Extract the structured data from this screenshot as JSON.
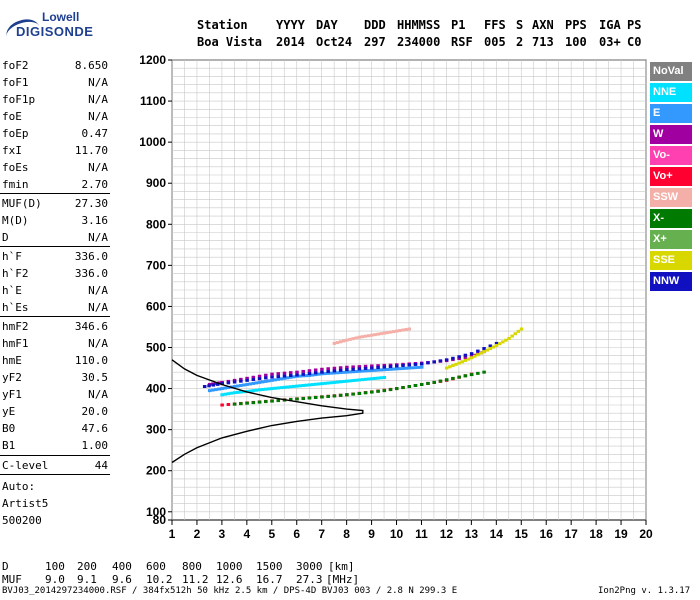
{
  "logo": {
    "line1": "Lowell",
    "line2": "DIGISONDE"
  },
  "header": {
    "labels": [
      "Station",
      "YYYY",
      "DAY",
      "DDD",
      "HHMMSS",
      "P1",
      "FFS",
      "S",
      "AXN",
      "PPS",
      "IGA",
      "PS"
    ],
    "values": [
      "Boa Vista",
      "2014",
      "Oct24",
      "297",
      "234000",
      "RSF",
      "005",
      "2",
      "713",
      "100",
      "03+",
      "C0"
    ]
  },
  "params": [
    {
      "name": "foF2",
      "value": "8.650"
    },
    {
      "name": "foF1",
      "value": "N/A"
    },
    {
      "name": "foF1p",
      "value": "N/A"
    },
    {
      "name": "foE",
      "value": "N/A"
    },
    {
      "name": "foEp",
      "value": "0.47"
    },
    {
      "name": "fxI",
      "value": "11.70"
    },
    {
      "name": "foEs",
      "value": "N/A"
    },
    {
      "name": "fmin",
      "value": "2.70"
    },
    {
      "name": "MUF(D)",
      "value": "27.30"
    },
    {
      "name": "M(D)",
      "value": "3.16"
    },
    {
      "name": "D",
      "value": "N/A"
    },
    {
      "name": "h`F",
      "value": "336.0"
    },
    {
      "name": "h`F2",
      "value": "336.0"
    },
    {
      "name": "h`E",
      "value": "N/A"
    },
    {
      "name": "h`Es",
      "value": "N/A"
    },
    {
      "name": "hmF2",
      "value": "346.6"
    },
    {
      "name": "hmF1",
      "value": "N/A"
    },
    {
      "name": "hmE",
      "value": "110.0"
    },
    {
      "name": "yF2",
      "value": "30.5"
    },
    {
      "name": "yF1",
      "value": "N/A"
    },
    {
      "name": "yE",
      "value": "20.0"
    },
    {
      "name": "B0",
      "value": "47.6"
    },
    {
      "name": "B1",
      "value": "1.00"
    },
    {
      "name": "C-level",
      "value": "44"
    }
  ],
  "auto": {
    "line1": "Auto:",
    "line2": "Artist5",
    "line3": "500200"
  },
  "legend": [
    {
      "label": "NoVal",
      "color": "#808080"
    },
    {
      "label": "NNE",
      "color": "#00e0ff"
    },
    {
      "label": "E",
      "color": "#3399ff"
    },
    {
      "label": "W",
      "color": "#a000a0"
    },
    {
      "label": "Vo-",
      "color": "#ff40b0"
    },
    {
      "label": "Vo+",
      "color": "#ff0030"
    },
    {
      "label": "SSW",
      "color": "#f4b0a8"
    },
    {
      "label": "X-",
      "color": "#007a00"
    },
    {
      "label": "X+",
      "color": "#66b050"
    },
    {
      "label": "SSE",
      "color": "#d8d800"
    },
    {
      "label": "NNW",
      "color": "#1010c0"
    }
  ],
  "muf_table": {
    "d_label": "D",
    "d_values": [
      "100",
      "200",
      "400",
      "600",
      "800",
      "1000",
      "1500",
      "3000"
    ],
    "d_unit": "[km]",
    "muf_label": "MUF",
    "muf_values": [
      "9.0",
      "9.1",
      "9.6",
      "10.2",
      "11.2",
      "12.6",
      "16.7",
      "27.3"
    ],
    "muf_unit": "[MHz]"
  },
  "footer": {
    "left": "BVJ03_2014297234000.RSF / 384fx512h 50 kHz 2.5 km / DPS-4D BVJ03 003 / 2.8 N 299.3 E",
    "right": "Ion2Png v. 1.3.17"
  },
  "chart_data": {
    "type": "scatter",
    "title": "",
    "xlabel": "",
    "ylabel": "",
    "xlim": [
      1,
      20
    ],
    "ylim": [
      80,
      1200
    ],
    "x_ticks": [
      1,
      2,
      3,
      4,
      5,
      6,
      7,
      8,
      9,
      10,
      11,
      12,
      13,
      14,
      15,
      16,
      17,
      18,
      19,
      20
    ],
    "y_ticks": [
      80,
      100,
      200,
      300,
      400,
      500,
      600,
      700,
      800,
      900,
      1000,
      1100,
      1200
    ],
    "grid": true,
    "legend_position": "right",
    "series": [
      {
        "name": "E",
        "color": "#3399ff",
        "points": [
          [
            2.5,
            395
          ],
          [
            3,
            400
          ],
          [
            3.5,
            405
          ],
          [
            4,
            410
          ],
          [
            4.5,
            415
          ],
          [
            5,
            420
          ],
          [
            5.5,
            425
          ],
          [
            6,
            430
          ],
          [
            6.5,
            432
          ],
          [
            7,
            436
          ],
          [
            7.5,
            438
          ],
          [
            8,
            440
          ],
          [
            8.5,
            442
          ],
          [
            9,
            444
          ],
          [
            9.5,
            446
          ],
          [
            10,
            448
          ],
          [
            10.5,
            450
          ],
          [
            11,
            452
          ]
        ]
      },
      {
        "name": "NNE",
        "color": "#00e0ff",
        "points": [
          [
            3,
            385
          ],
          [
            3.5,
            390
          ],
          [
            4,
            393
          ],
          [
            4.5,
            397
          ],
          [
            5,
            400
          ],
          [
            5.5,
            403
          ],
          [
            6,
            406
          ],
          [
            6.5,
            409
          ],
          [
            7,
            412
          ],
          [
            7.5,
            415
          ],
          [
            8,
            418
          ],
          [
            8.5,
            421
          ],
          [
            9,
            424
          ],
          [
            9.5,
            427
          ]
        ]
      },
      {
        "name": "W",
        "color": "#a000a0",
        "points": [
          [
            2.5,
            410
          ],
          [
            3,
            415
          ],
          [
            4,
            425
          ],
          [
            5,
            435
          ],
          [
            6,
            440
          ],
          [
            7,
            447
          ],
          [
            8,
            452
          ],
          [
            9,
            455
          ],
          [
            10,
            458
          ],
          [
            11,
            462
          ],
          [
            12,
            468
          ],
          [
            13,
            478
          ],
          [
            13.5,
            490
          ]
        ]
      },
      {
        "name": "NNW",
        "color": "#1010c0",
        "points": [
          [
            2.3,
            405
          ],
          [
            3,
            412
          ],
          [
            4,
            420
          ],
          [
            5,
            428
          ],
          [
            6,
            433
          ],
          [
            7,
            440
          ],
          [
            8,
            446
          ],
          [
            9,
            450
          ],
          [
            10,
            455
          ],
          [
            11,
            460
          ],
          [
            12,
            470
          ],
          [
            13,
            485
          ],
          [
            14,
            510
          ]
        ]
      },
      {
        "name": "SSE",
        "color": "#d8d800",
        "points": [
          [
            12,
            450
          ],
          [
            12.5,
            462
          ],
          [
            13,
            475
          ],
          [
            13.5,
            490
          ],
          [
            14,
            505
          ],
          [
            14.5,
            522
          ],
          [
            15,
            545
          ]
        ]
      },
      {
        "name": "Vo+",
        "color": "#ff0030",
        "points": [
          [
            3,
            360
          ],
          [
            4,
            365
          ],
          [
            5,
            370
          ],
          [
            6,
            375
          ],
          [
            7,
            380
          ],
          [
            8,
            385
          ],
          [
            9,
            392
          ],
          [
            10,
            400
          ],
          [
            11,
            410
          ],
          [
            12,
            420
          ],
          [
            13,
            435
          ]
        ]
      },
      {
        "name": "X-",
        "color": "#007a00",
        "points": [
          [
            3.5,
            362
          ],
          [
            4.5,
            367
          ],
          [
            5.5,
            372
          ],
          [
            6.5,
            377
          ],
          [
            7.5,
            382
          ],
          [
            8.5,
            388
          ],
          [
            9.5,
            395
          ],
          [
            10.5,
            405
          ],
          [
            11.5,
            415
          ],
          [
            12.5,
            428
          ],
          [
            13.5,
            440
          ]
        ]
      },
      {
        "name": "SSW",
        "color": "#f4b0a8",
        "points": [
          [
            7.5,
            510
          ],
          [
            8,
            518
          ],
          [
            8.5,
            525
          ],
          [
            9,
            530
          ],
          [
            9.5,
            535
          ],
          [
            10,
            540
          ],
          [
            10.5,
            545
          ]
        ]
      }
    ],
    "profile": [
      [
        1,
        220
      ],
      [
        1.5,
        240
      ],
      [
        2,
        256
      ],
      [
        3,
        280
      ],
      [
        4,
        296
      ],
      [
        5,
        310
      ],
      [
        6,
        320
      ],
      [
        7,
        328
      ],
      [
        8,
        334
      ],
      [
        8.65,
        340
      ],
      [
        8.65,
        346.6
      ],
      [
        8,
        350
      ],
      [
        7,
        358
      ],
      [
        6,
        368
      ],
      [
        5,
        378
      ],
      [
        4,
        392
      ],
      [
        3,
        410
      ],
      [
        2,
        432
      ],
      [
        1.5,
        448
      ],
      [
        1,
        470
      ]
    ]
  }
}
